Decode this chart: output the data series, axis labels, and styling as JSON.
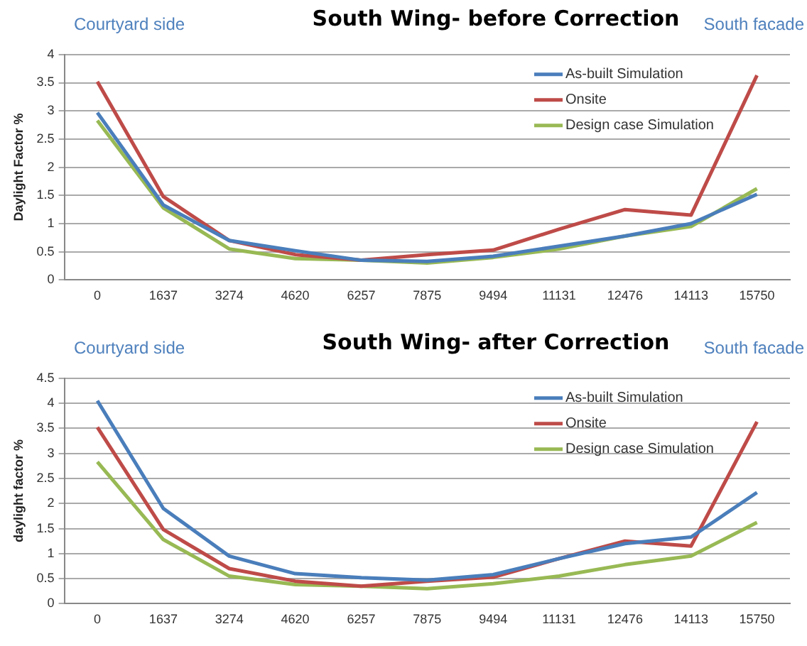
{
  "chart_data": [
    {
      "type": "line",
      "title": "South Wing- before Correction",
      "ylabel": "Daylight Factor %",
      "annotations": [
        "Courtyard side",
        "South facade"
      ],
      "categories": [
        "0",
        "1637",
        "3274",
        "4620",
        "6257",
        "7875",
        "9494",
        "11131",
        "12476",
        "14113",
        "15750"
      ],
      "series": [
        {
          "name": "As-built Simulation",
          "color": "#4a7ebb",
          "values": [
            2.97,
            1.33,
            0.7,
            0.52,
            0.35,
            0.33,
            0.42,
            0.6,
            0.78,
            1.0,
            1.52
          ]
        },
        {
          "name": "Onsite",
          "color": "#be4b48",
          "values": [
            3.52,
            1.48,
            0.7,
            0.45,
            0.35,
            0.45,
            0.53,
            0.9,
            1.25,
            1.15,
            3.63
          ]
        },
        {
          "name": "Design case Simulation",
          "color": "#98b954",
          "values": [
            2.83,
            1.28,
            0.55,
            0.38,
            0.35,
            0.3,
            0.4,
            0.55,
            0.78,
            0.95,
            1.62
          ]
        }
      ],
      "ylim": [
        0,
        4
      ],
      "yticks": [
        0,
        0.5,
        1,
        1.5,
        2,
        2.5,
        3,
        3.5,
        4
      ],
      "grid": "y",
      "legend": "top right",
      "marker": "none",
      "line_style": "solid"
    },
    {
      "type": "line",
      "title": "South Wing- after Correction",
      "ylabel": "daylight factor %",
      "annotations": [
        "Courtyard side",
        "South facade"
      ],
      "categories": [
        "0",
        "1637",
        "3274",
        "4620",
        "6257",
        "7875",
        "9494",
        "11131",
        "12476",
        "14113",
        "15750"
      ],
      "series": [
        {
          "name": "As-built Simulation",
          "color": "#4a7ebb",
          "values": [
            4.05,
            1.9,
            0.95,
            0.6,
            0.52,
            0.47,
            0.58,
            0.9,
            1.2,
            1.33,
            2.22
          ]
        },
        {
          "name": "Onsite",
          "color": "#be4b48",
          "values": [
            3.52,
            1.48,
            0.7,
            0.45,
            0.35,
            0.45,
            0.53,
            0.9,
            1.25,
            1.15,
            3.63
          ]
        },
        {
          "name": "Design case Simulation",
          "color": "#98b954",
          "values": [
            2.83,
            1.28,
            0.55,
            0.38,
            0.35,
            0.3,
            0.4,
            0.55,
            0.78,
            0.95,
            1.62
          ]
        }
      ],
      "ylim": [
        0,
        4.5
      ],
      "yticks": [
        0,
        0.5,
        1,
        1.5,
        2,
        2.5,
        3,
        3.5,
        4,
        4.5
      ],
      "grid": "y",
      "legend": "top right",
      "marker": "none",
      "line_style": "solid"
    }
  ]
}
